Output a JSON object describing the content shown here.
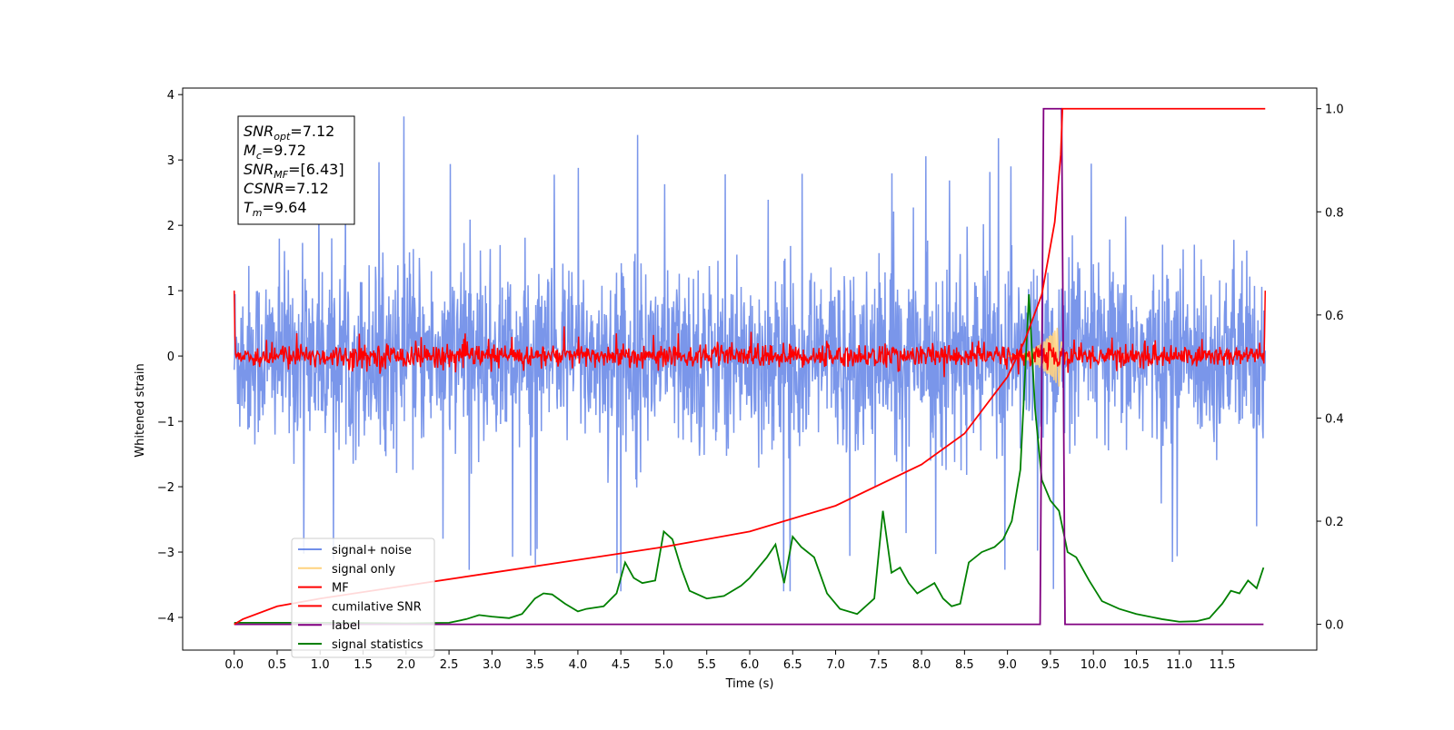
{
  "chart_data": {
    "type": "line",
    "xlabel": "Time (s)",
    "ylabel": "Whitened strain",
    "x_ticks": [
      "0.0",
      "0.5",
      "1.0",
      "1.5",
      "2.0",
      "2.5",
      "3.0",
      "3.5",
      "4.0",
      "4.5",
      "5.0",
      "5.5",
      "6.0",
      "6.5",
      "7.0",
      "7.5",
      "8.0",
      "8.5",
      "9.0",
      "9.5",
      "10.0",
      "10.5",
      "11.0",
      "11.5"
    ],
    "xlim": [
      -0.6,
      12.6
    ],
    "ylim_left": [
      -4.5,
      4.1
    ],
    "ylim_right": [
      -0.05,
      1.04
    ],
    "y_ticks_left": [
      "4",
      "3",
      "2",
      "1",
      "0",
      "−1",
      "−2",
      "−3",
      "−4"
    ],
    "y_ticks_right": [
      "1.0",
      "0.8",
      "0.6",
      "0.4",
      "0.2",
      "0.0"
    ],
    "legend_position": "lower-left",
    "legend": [
      {
        "label": "signal+ noise",
        "color": "#4169e1"
      },
      {
        "label": "signal only",
        "color": "#ffd27f"
      },
      {
        "label": "MF",
        "color": "#ff0000"
      },
      {
        "label": "cumilative SNR",
        "color": "#ff0000"
      },
      {
        "label": "label",
        "color": "#800080"
      },
      {
        "label": "signal statistics",
        "color": "#008000"
      }
    ],
    "stats_box": [
      {
        "sym": "SNR",
        "sub": "opt",
        "value": "=7.12"
      },
      {
        "sym": "M",
        "sub": "c",
        "value": "=9.72"
      },
      {
        "sym": "SNR",
        "sub": "MF",
        "value": "=[6.43]"
      },
      {
        "sym": "CSNR",
        "sub": "",
        "value": "=7.12"
      },
      {
        "sym": "T",
        "sub": "m",
        "value": "=9.64"
      }
    ],
    "series": [
      {
        "name": "signal+ noise",
        "axis": "left",
        "x_range": [
          0,
          12
        ],
        "typical_range": [
          -1.6,
          1.6
        ],
        "extremes": {
          "max": 3.7,
          "min": -3.6
        }
      },
      {
        "name": "signal only",
        "axis": "left",
        "x_range": [
          9.0,
          9.7
        ],
        "peak_amplitude": 0.5,
        "peak_time": 9.62
      },
      {
        "name": "MF",
        "axis": "left",
        "x_range": [
          0,
          12
        ],
        "typical_range": [
          -0.25,
          0.3
        ],
        "edge_value": 1.0
      },
      {
        "name": "cumilative SNR",
        "axis": "right",
        "x": [
          0,
          0.1,
          0.5,
          1,
          2,
          3,
          4,
          5,
          6,
          7,
          8,
          8.5,
          9,
          9.2,
          9.4,
          9.55,
          9.62,
          9.64,
          12
        ],
        "y": [
          0.0,
          0.01,
          0.035,
          0.05,
          0.075,
          0.1,
          0.125,
          0.15,
          0.18,
          0.23,
          0.31,
          0.37,
          0.48,
          0.55,
          0.64,
          0.78,
          0.91,
          1.0,
          1.0
        ]
      },
      {
        "name": "label",
        "axis": "right",
        "x": [
          0,
          9.38,
          9.42,
          9.63,
          9.67,
          11.98
        ],
        "y": [
          0,
          0,
          1,
          1,
          0,
          0
        ]
      },
      {
        "name": "signal statistics",
        "axis": "right",
        "x": [
          0,
          1,
          2,
          2.5,
          2.7,
          2.85,
          3.0,
          3.2,
          3.35,
          3.5,
          3.6,
          3.7,
          3.85,
          4.0,
          4.1,
          4.3,
          4.45,
          4.55,
          4.65,
          4.75,
          4.9,
          5.0,
          5.1,
          5.2,
          5.3,
          5.5,
          5.7,
          5.9,
          6.0,
          6.2,
          6.3,
          6.4,
          6.5,
          6.6,
          6.75,
          6.9,
          7.05,
          7.25,
          7.45,
          7.55,
          7.65,
          7.75,
          7.85,
          7.95,
          8.05,
          8.15,
          8.25,
          8.35,
          8.45,
          8.55,
          8.7,
          8.85,
          8.95,
          9.05,
          9.15,
          9.25,
          9.32,
          9.4,
          9.5,
          9.6,
          9.7,
          9.8,
          9.95,
          10.1,
          10.3,
          10.5,
          10.8,
          11.0,
          11.2,
          11.35,
          11.5,
          11.6,
          11.7,
          11.8,
          11.9,
          11.98
        ],
        "y": [
          0.003,
          0.003,
          0.002,
          0.003,
          0.01,
          0.018,
          0.015,
          0.012,
          0.02,
          0.05,
          0.06,
          0.058,
          0.04,
          0.025,
          0.03,
          0.035,
          0.06,
          0.12,
          0.09,
          0.08,
          0.085,
          0.18,
          0.165,
          0.11,
          0.065,
          0.05,
          0.055,
          0.075,
          0.09,
          0.13,
          0.155,
          0.08,
          0.17,
          0.15,
          0.13,
          0.06,
          0.03,
          0.02,
          0.05,
          0.22,
          0.1,
          0.11,
          0.08,
          0.06,
          0.07,
          0.08,
          0.05,
          0.035,
          0.04,
          0.12,
          0.14,
          0.15,
          0.165,
          0.2,
          0.3,
          0.64,
          0.42,
          0.28,
          0.24,
          0.22,
          0.14,
          0.13,
          0.085,
          0.045,
          0.03,
          0.02,
          0.01,
          0.005,
          0.006,
          0.012,
          0.04,
          0.065,
          0.06,
          0.085,
          0.07,
          0.11
        ]
      }
    ]
  }
}
